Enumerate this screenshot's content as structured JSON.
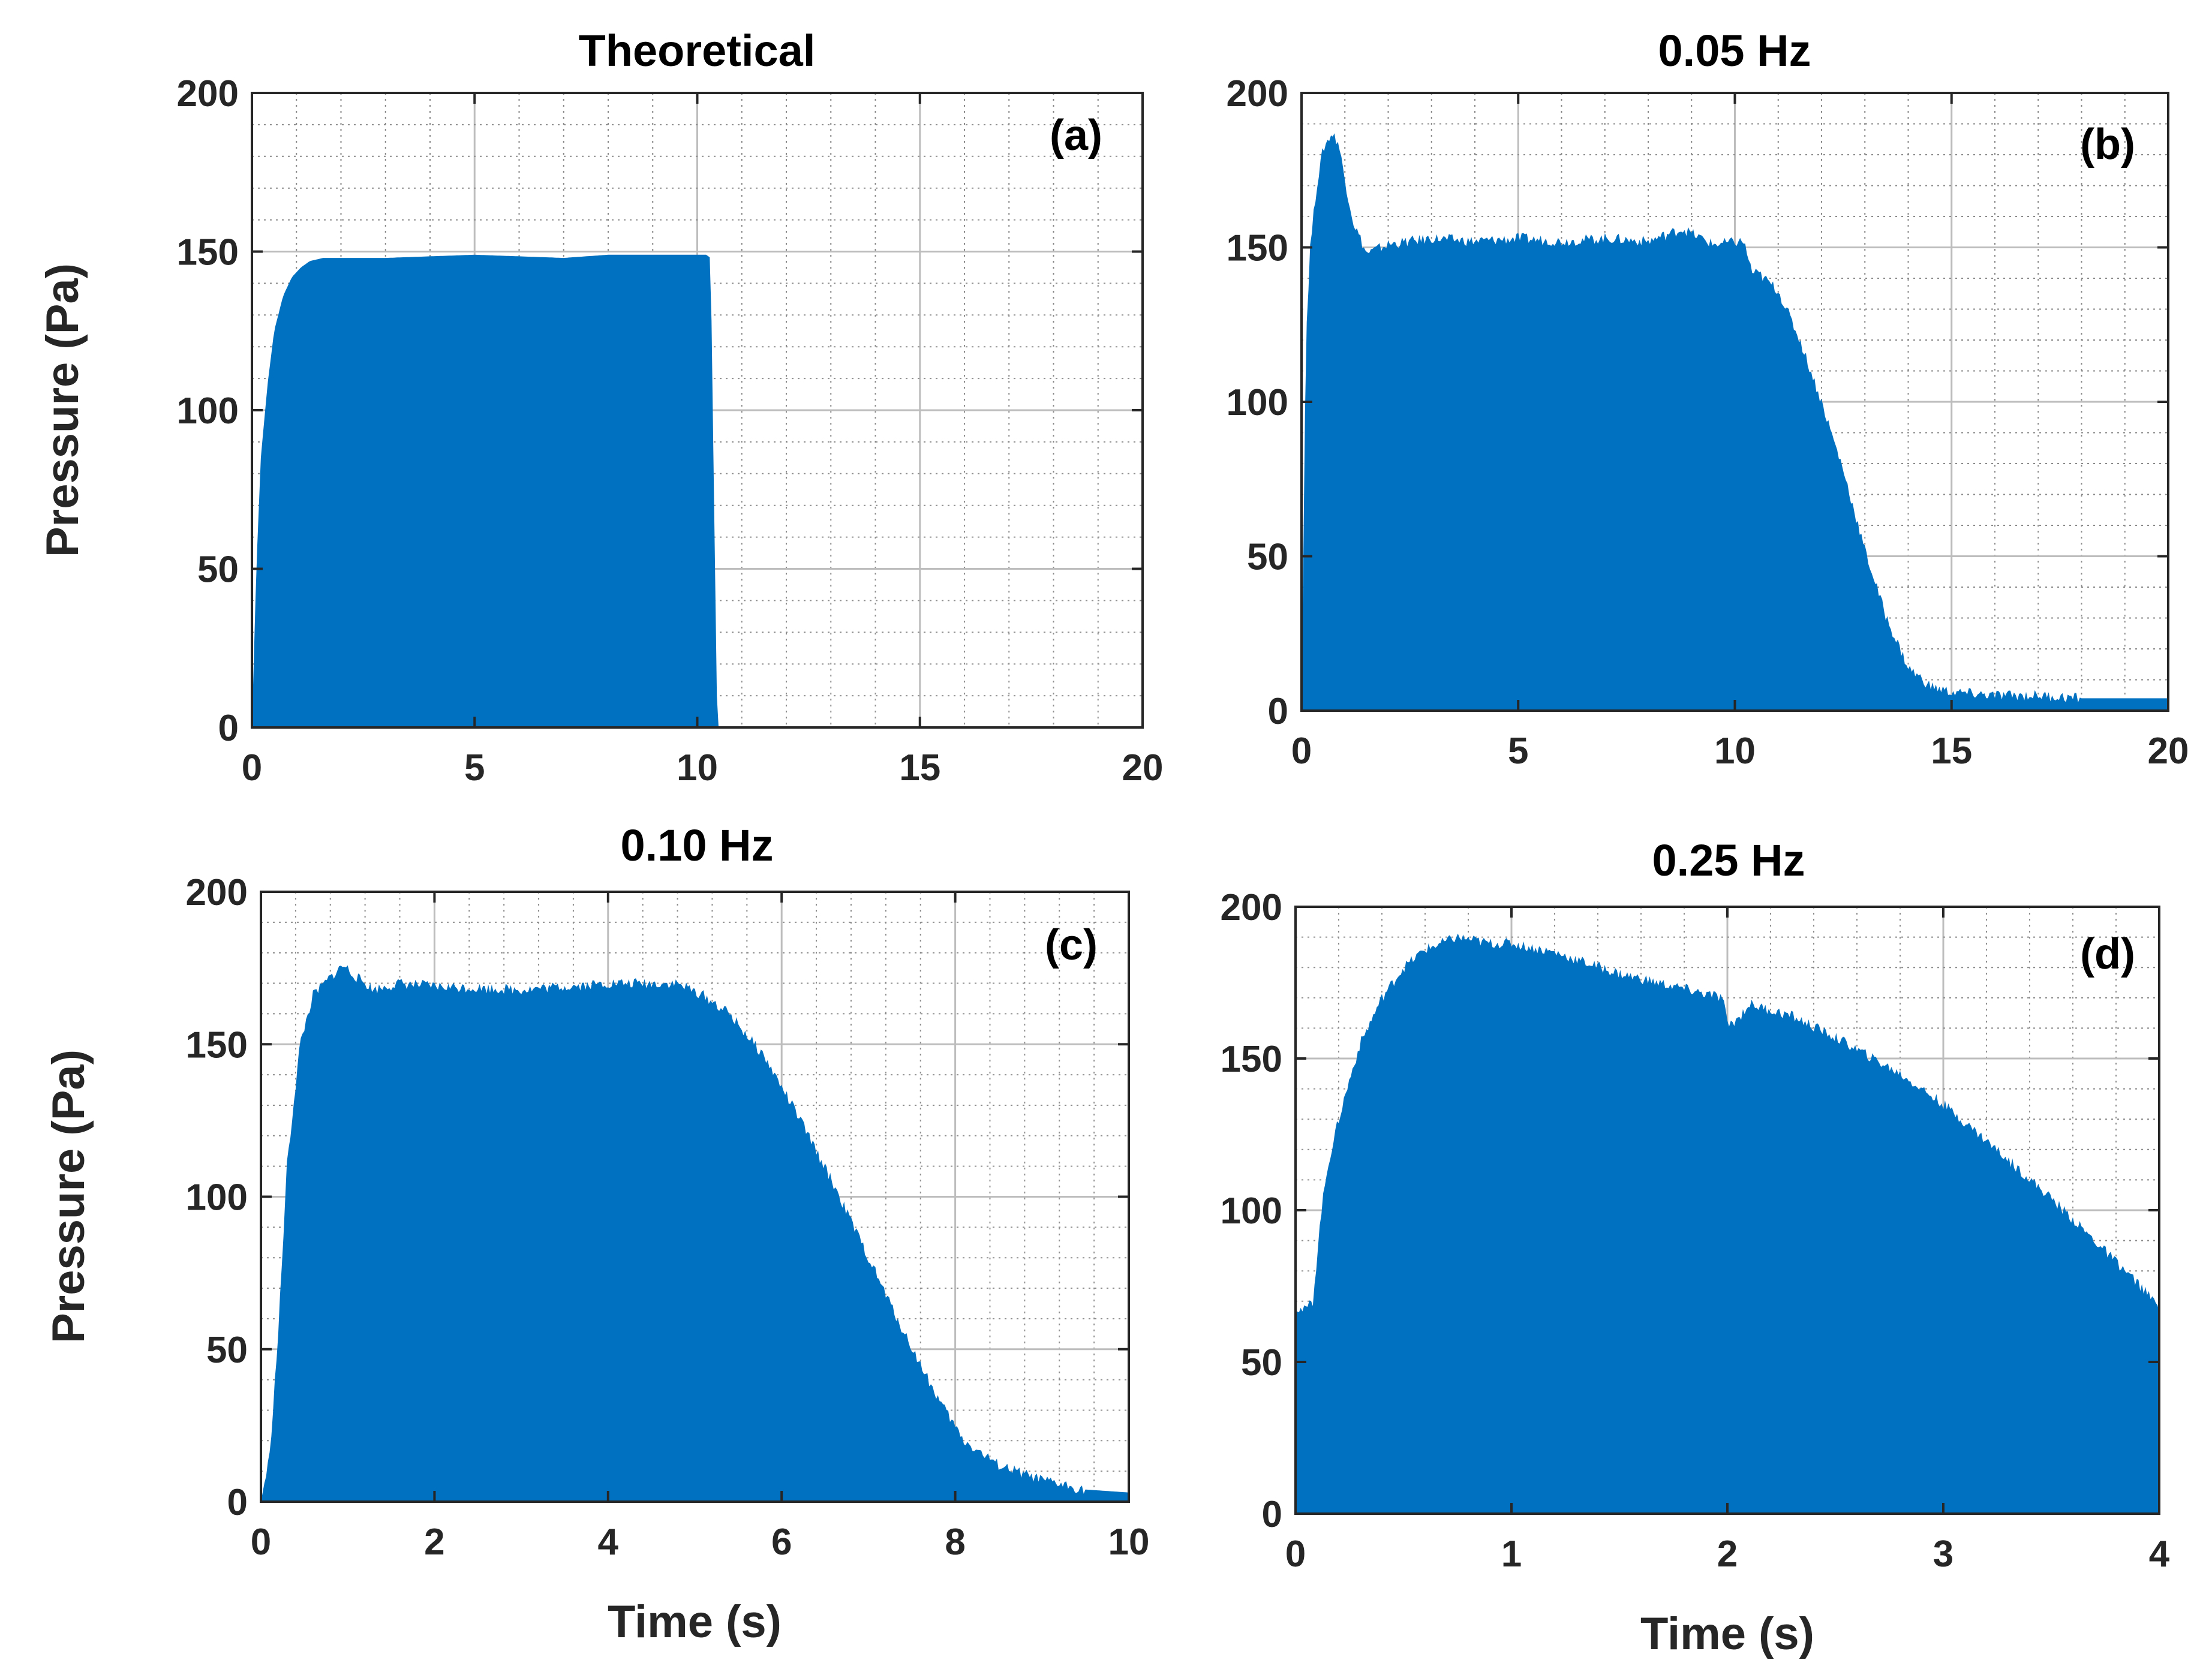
{
  "colors": {
    "fill": "#0070C0",
    "grid_major": "#bdbdbd",
    "grid_minor": "#8c8c8c",
    "axis": "#262626"
  },
  "chart_data": [
    {
      "type": "area",
      "title": "Theoretical",
      "panel_label": "(a)",
      "xlabel": "",
      "ylabel": "Pressure (Pa)",
      "xlim": [
        0,
        20
      ],
      "ylim": [
        0,
        200
      ],
      "xticks": [
        "0",
        "5",
        "10",
        "15",
        "20"
      ],
      "yticks": [
        "0",
        "50",
        "100",
        "150",
        "200"
      ],
      "series": [
        {
          "name": "pressure",
          "x": [
            0,
            0.1,
            0.2,
            0.35,
            0.5,
            0.7,
            0.9,
            1.1,
            1.3,
            1.6,
            3,
            5,
            7,
            8,
            10.2,
            10.3,
            10.45,
            20
          ],
          "y": [
            0,
            50,
            85,
            108,
            125,
            136,
            142,
            145,
            147,
            148,
            148,
            149,
            148,
            149,
            149,
            148,
            0,
            0
          ]
        }
      ]
    },
    {
      "type": "area",
      "title": "0.05 Hz",
      "panel_label": "(b)",
      "xlabel": "",
      "ylabel": "",
      "xlim": [
        0,
        20
      ],
      "ylim": [
        0,
        200
      ],
      "xticks": [
        "0",
        "5",
        "10",
        "15",
        "20"
      ],
      "yticks": [
        "0",
        "50",
        "100",
        "150",
        "200"
      ],
      "series": [
        {
          "name": "pressure",
          "x": [
            0,
            0.1,
            0.2,
            0.35,
            0.5,
            0.7,
            0.85,
            1.0,
            1.2,
            1.5,
            2,
            3,
            4,
            5,
            6,
            7,
            8,
            8.8,
            9.5,
            10.2,
            10.4,
            10.6,
            11,
            11.5,
            12,
            12.5,
            13,
            13.5,
            14,
            14.5,
            15,
            16,
            17,
            18,
            19,
            20
          ],
          "y": [
            3,
            120,
            150,
            170,
            182,
            187,
            184,
            172,
            158,
            148,
            151,
            153,
            152,
            153,
            152,
            153,
            152,
            156,
            151,
            152,
            142,
            141,
            136,
            120,
            100,
            78,
            52,
            30,
            14,
            8,
            6,
            5,
            5,
            4,
            4,
            4
          ]
        }
      ]
    },
    {
      "type": "area",
      "title": "0.10 Hz",
      "panel_label": "(c)",
      "xlabel": "Time (s)",
      "ylabel": "Pressure (Pa)",
      "xlim": [
        0,
        10
      ],
      "ylim": [
        0,
        200
      ],
      "xticks": [
        "0",
        "2",
        "4",
        "6",
        "8",
        "10"
      ],
      "yticks": [
        "0",
        "50",
        "100",
        "150",
        "200"
      ],
      "series": [
        {
          "name": "pressure",
          "x": [
            0,
            0.1,
            0.2,
            0.3,
            0.45,
            0.6,
            0.8,
            0.95,
            1.1,
            1.3,
            1.6,
            2,
            3,
            4,
            4.8,
            5.1,
            5.4,
            5.8,
            6.2,
            6.6,
            7,
            7.4,
            7.8,
            8.1,
            8.5,
            9,
            9.5,
            10
          ],
          "y": [
            0,
            15,
            55,
            110,
            150,
            166,
            172,
            176,
            172,
            168,
            170,
            169,
            168,
            170,
            170,
            166,
            160,
            146,
            126,
            104,
            80,
            56,
            34,
            20,
            12,
            7,
            4,
            3
          ]
        }
      ]
    },
    {
      "type": "area",
      "title": "0.25 Hz",
      "panel_label": "(d)",
      "xlabel": "Time (s)",
      "ylabel": "",
      "xlim": [
        0,
        4
      ],
      "ylim": [
        0,
        200
      ],
      "xticks": [
        "0",
        "1",
        "2",
        "3",
        "4"
      ],
      "yticks": [
        "0",
        "50",
        "100",
        "150",
        "200"
      ],
      "series": [
        {
          "name": "pressure",
          "x": [
            0,
            0.04,
            0.08,
            0.1,
            0.12,
            0.15,
            0.2,
            0.25,
            0.3,
            0.4,
            0.5,
            0.6,
            0.75,
            0.9,
            1.0,
            1.2,
            1.5,
            1.8,
            1.98,
            2.0,
            2.05,
            2.1,
            2.3,
            2.5,
            2.8,
            3.0,
            3.2,
            3.5,
            3.7,
            3.9,
            4.0
          ],
          "y": [
            68,
            67,
            70,
            85,
            100,
            115,
            130,
            143,
            155,
            170,
            180,
            186,
            190,
            188,
            188,
            185,
            178,
            173,
            170,
            161,
            163,
            168,
            164,
            157,
            145,
            135,
            123,
            104,
            90,
            76,
            68
          ]
        }
      ]
    }
  ]
}
